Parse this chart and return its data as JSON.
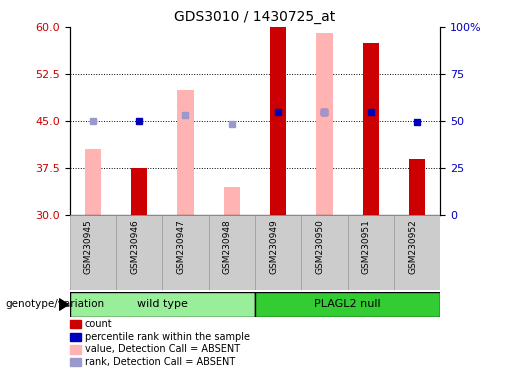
{
  "title": "GDS3010 / 1430725_at",
  "samples": [
    "GSM230945",
    "GSM230946",
    "GSM230947",
    "GSM230948",
    "GSM230949",
    "GSM230950",
    "GSM230951",
    "GSM230952"
  ],
  "left_ylim": [
    30,
    60
  ],
  "left_yticks": [
    30,
    37.5,
    45,
    52.5,
    60
  ],
  "right_ylim": [
    0,
    100
  ],
  "right_yticks": [
    0,
    25,
    50,
    75,
    100
  ],
  "right_yticklabels": [
    "0",
    "25",
    "50",
    "75",
    "100%"
  ],
  "bar_red_values": [
    null,
    37.5,
    null,
    null,
    60.0,
    null,
    57.5,
    39.0
  ],
  "bar_pink_values": [
    40.5,
    null,
    50.0,
    34.5,
    null,
    59.0,
    null,
    null
  ],
  "dot_blue_values": [
    null,
    45.0,
    null,
    null,
    46.5,
    46.5,
    46.5,
    44.8
  ],
  "dot_lightblue_values": [
    45.0,
    null,
    46.0,
    44.5,
    null,
    46.5,
    null,
    null
  ],
  "bar_width": 0.35,
  "color_red": "#cc0000",
  "color_pink": "#ffb3b3",
  "color_blue": "#0000bb",
  "color_lightblue": "#9999cc",
  "color_tickbg": "#cccccc",
  "color_group1": "#99ee99",
  "color_group2": "#33cc33",
  "group_labels": [
    "wild type",
    "PLAGL2 null"
  ],
  "group_splits": [
    0,
    4,
    8
  ],
  "genotype_label": "genotype/variation",
  "legend_items": [
    {
      "label": "count",
      "color": "#cc0000"
    },
    {
      "label": "percentile rank within the sample",
      "color": "#0000bb"
    },
    {
      "label": "value, Detection Call = ABSENT",
      "color": "#ffb3b3"
    },
    {
      "label": "rank, Detection Call = ABSENT",
      "color": "#9999cc"
    }
  ]
}
